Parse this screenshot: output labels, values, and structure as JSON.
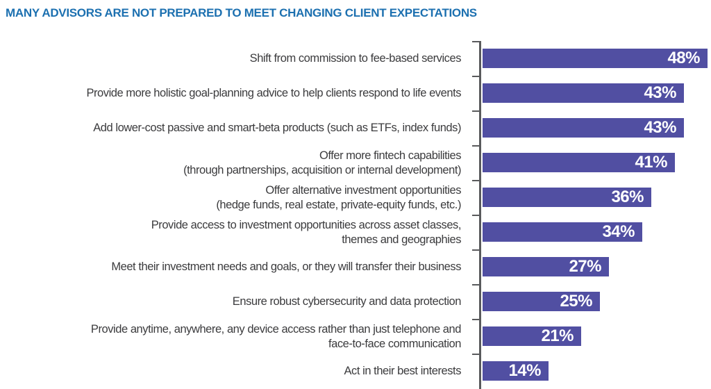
{
  "title": "MANY ADVISORS ARE NOT PREPARED TO MEET CHANGING CLIENT EXPECTATIONS",
  "colors": {
    "title_color": "#1c70b0",
    "bar_color": "#514fa2",
    "axis_color": "#595a5c",
    "label_color": "#3b3b3d",
    "value_color": "#ffffff"
  },
  "chart_data": {
    "type": "bar",
    "orientation": "horizontal",
    "title": "MANY ADVISORS ARE NOT PREPARED TO MEET CHANGING CLIENT EXPECTATIONS",
    "unit": "%",
    "xlim": [
      0,
      50
    ],
    "grid": false,
    "legend": false,
    "value_labels_position": "inside-end",
    "categories": [
      "Shift from commission to fee-based services",
      "Provide more holistic goal-planning advice to help clients respond to life events",
      "Add lower-cost passive and smart-beta products (such as ETFs, index funds)",
      "Offer more fintech capabilities\n(through partnerships, acquisition or internal development)",
      "Offer alternative investment opportunities\n(hedge funds, real estate, private-equity funds, etc.)",
      "Provide access to investment opportunities across asset classes,\nthemes and geographies",
      "Meet their investment needs and goals, or they will transfer their business",
      "Ensure robust cybersecurity and data protection",
      "Provide anytime, anywhere, any device access rather than just telephone and\nface-to-face communication",
      "Act in their best interests"
    ],
    "values": [
      48,
      43,
      43,
      41,
      36,
      34,
      27,
      25,
      21,
      14
    ],
    "value_labels": [
      "48%",
      "43%",
      "43%",
      "41%",
      "36%",
      "34%",
      "27%",
      "25%",
      "21%",
      "14%"
    ]
  }
}
